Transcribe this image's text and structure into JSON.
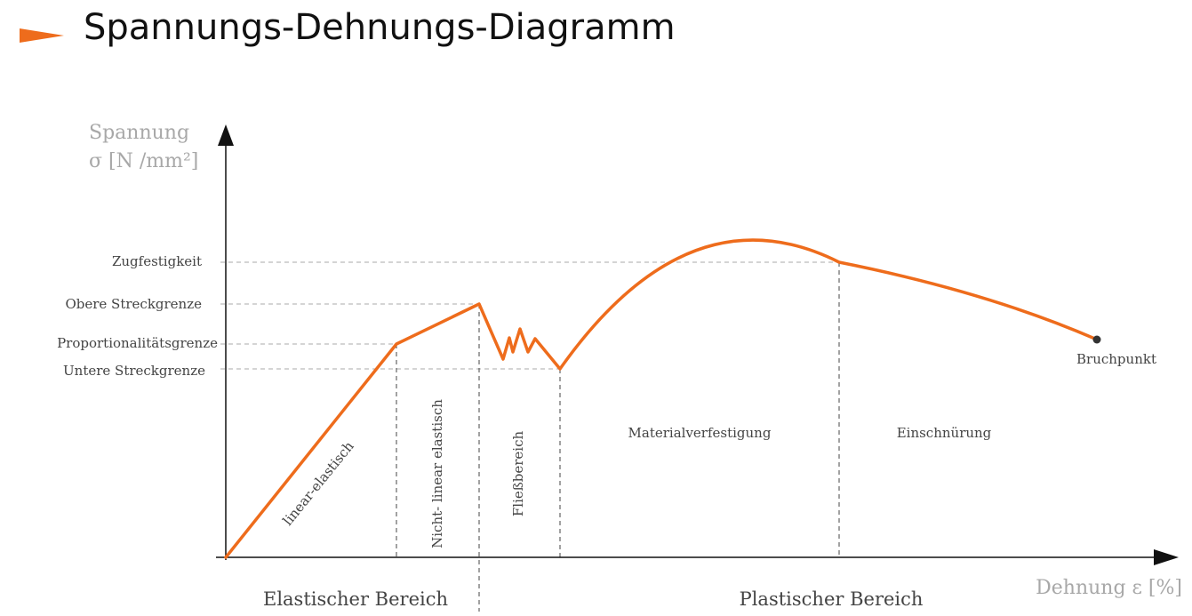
{
  "title": "Spannungs-Dehnungs-Diagramm",
  "accent_color": "#ee6c1c",
  "icons": {
    "title_marker": "orange-triangle-pointer-icon"
  },
  "axes": {
    "y_label_line1": "Spannung",
    "y_label_line2": "σ [N /mm²]",
    "x_label": "Dehnung  ε [%]"
  },
  "y_levels": {
    "zugfestigkeit": "Zugfestigkeit",
    "obere_streckgrenze": "Obere Streckgrenze",
    "proportionalitaetsgrenze": "Proportionalitätsgrenze",
    "untere_streckgrenze": "Untere Streckgrenze"
  },
  "regions": {
    "linear_elastisch": "linear-elastisch",
    "nicht_linear_elastisch": "Nicht- linear elastisch",
    "fliessbereich": "Fließbereich",
    "materialverfestigung": "Materialverfestigung",
    "einschnuerung": "Einschnürung"
  },
  "zones": {
    "elastisch": "Elastischer Bereich",
    "plastisch": "Plastischer Bereich"
  },
  "points": {
    "bruchpunkt": "Bruchpunkt"
  }
}
